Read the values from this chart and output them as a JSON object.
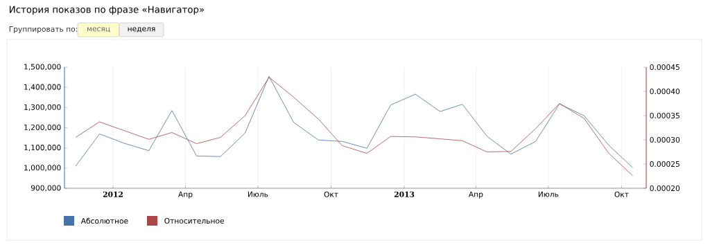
{
  "chart_data": {
    "type": "line",
    "title": "История показов по фразе «Навигатор»",
    "annotations": [
      "Группировать по:",
      "месяц",
      "неделя"
    ],
    "x": [
      "2011-11-15",
      "2011-12-15",
      "2012-01-15",
      "2012-02-15",
      "2012-03-15",
      "2012-04-15",
      "2012-05-15",
      "2012-06-15",
      "2012-07-15",
      "2012-08-15",
      "2012-09-15",
      "2012-10-15",
      "2012-11-15",
      "2012-12-15",
      "2013-01-15",
      "2013-02-15",
      "2013-03-15",
      "2013-04-15",
      "2013-05-15",
      "2013-06-15",
      "2013-07-15",
      "2013-08-15",
      "2013-09-15",
      "2013-10-15"
    ],
    "series": [
      {
        "name": "Абсолютное",
        "color": "#4572a7",
        "values": [
          1009000,
          1169000,
          1123000,
          1086000,
          1285000,
          1060000,
          1057000,
          1174000,
          1454000,
          1226000,
          1139000,
          1132000,
          1098000,
          1313000,
          1366000,
          1280000,
          1316000,
          1157000,
          1069000,
          1132000,
          1318000,
          1259000,
          1113000,
          1002000
        ]
      },
      {
        "name": "Относительное",
        "color": "#aa4643",
        "axis": "y2",
        "values": [
          0.000305,
          0.000337,
          0.000319,
          0.000301,
          0.000315,
          0.000292,
          0.000305,
          0.00035,
          0.000429,
          0.000388,
          0.000343,
          0.000288,
          0.000272,
          0.000307,
          0.000306,
          0.000302,
          0.000298,
          0.000275,
          0.000276,
          0.000323,
          0.000375,
          0.000344,
          0.000272,
          0.000226
        ]
      }
    ],
    "xlim": [
      "2011-11-01",
      "2013-11-01"
    ],
    "xticks": [
      {
        "value": "2012-01-01",
        "label": "2012"
      },
      {
        "value": "2012-04-01",
        "label": "Апр"
      },
      {
        "value": "2012-07-01",
        "label": "Июль"
      },
      {
        "value": "2012-10-01",
        "label": "Окт"
      },
      {
        "value": "2013-01-01",
        "label": "2013"
      },
      {
        "value": "2013-04-01",
        "label": "Апр"
      },
      {
        "value": "2013-07-01",
        "label": "Июль"
      },
      {
        "value": "2013-10-01",
        "label": "Окт"
      }
    ],
    "ylim": [
      900000,
      1500000
    ],
    "yticks": [
      {
        "value": 900000,
        "label": "900,000"
      },
      {
        "value": 1000000,
        "label": "1,000,000"
      },
      {
        "value": 1100000,
        "label": "1,100,000"
      },
      {
        "value": 1200000,
        "label": "1,200,000"
      },
      {
        "value": 1300000,
        "label": "1,300,000"
      },
      {
        "value": 1400000,
        "label": "1,400,000"
      },
      {
        "value": 1500000,
        "label": "1,500,000"
      }
    ],
    "y2lim": [
      0.0002,
      0.00045
    ],
    "y2ticks": [
      {
        "value": 0.0002,
        "label": "0.00020"
      },
      {
        "value": 0.00025,
        "label": "0.00025"
      },
      {
        "value": 0.0003,
        "label": "0.00030"
      },
      {
        "value": 0.00035,
        "label": "0.00035"
      },
      {
        "value": 0.0004,
        "label": "0.00040"
      },
      {
        "value": 0.00045,
        "label": "0.00045"
      }
    ],
    "grid": "x",
    "legend": "bottom left",
    "marker": "none",
    "line_style": "solid"
  }
}
